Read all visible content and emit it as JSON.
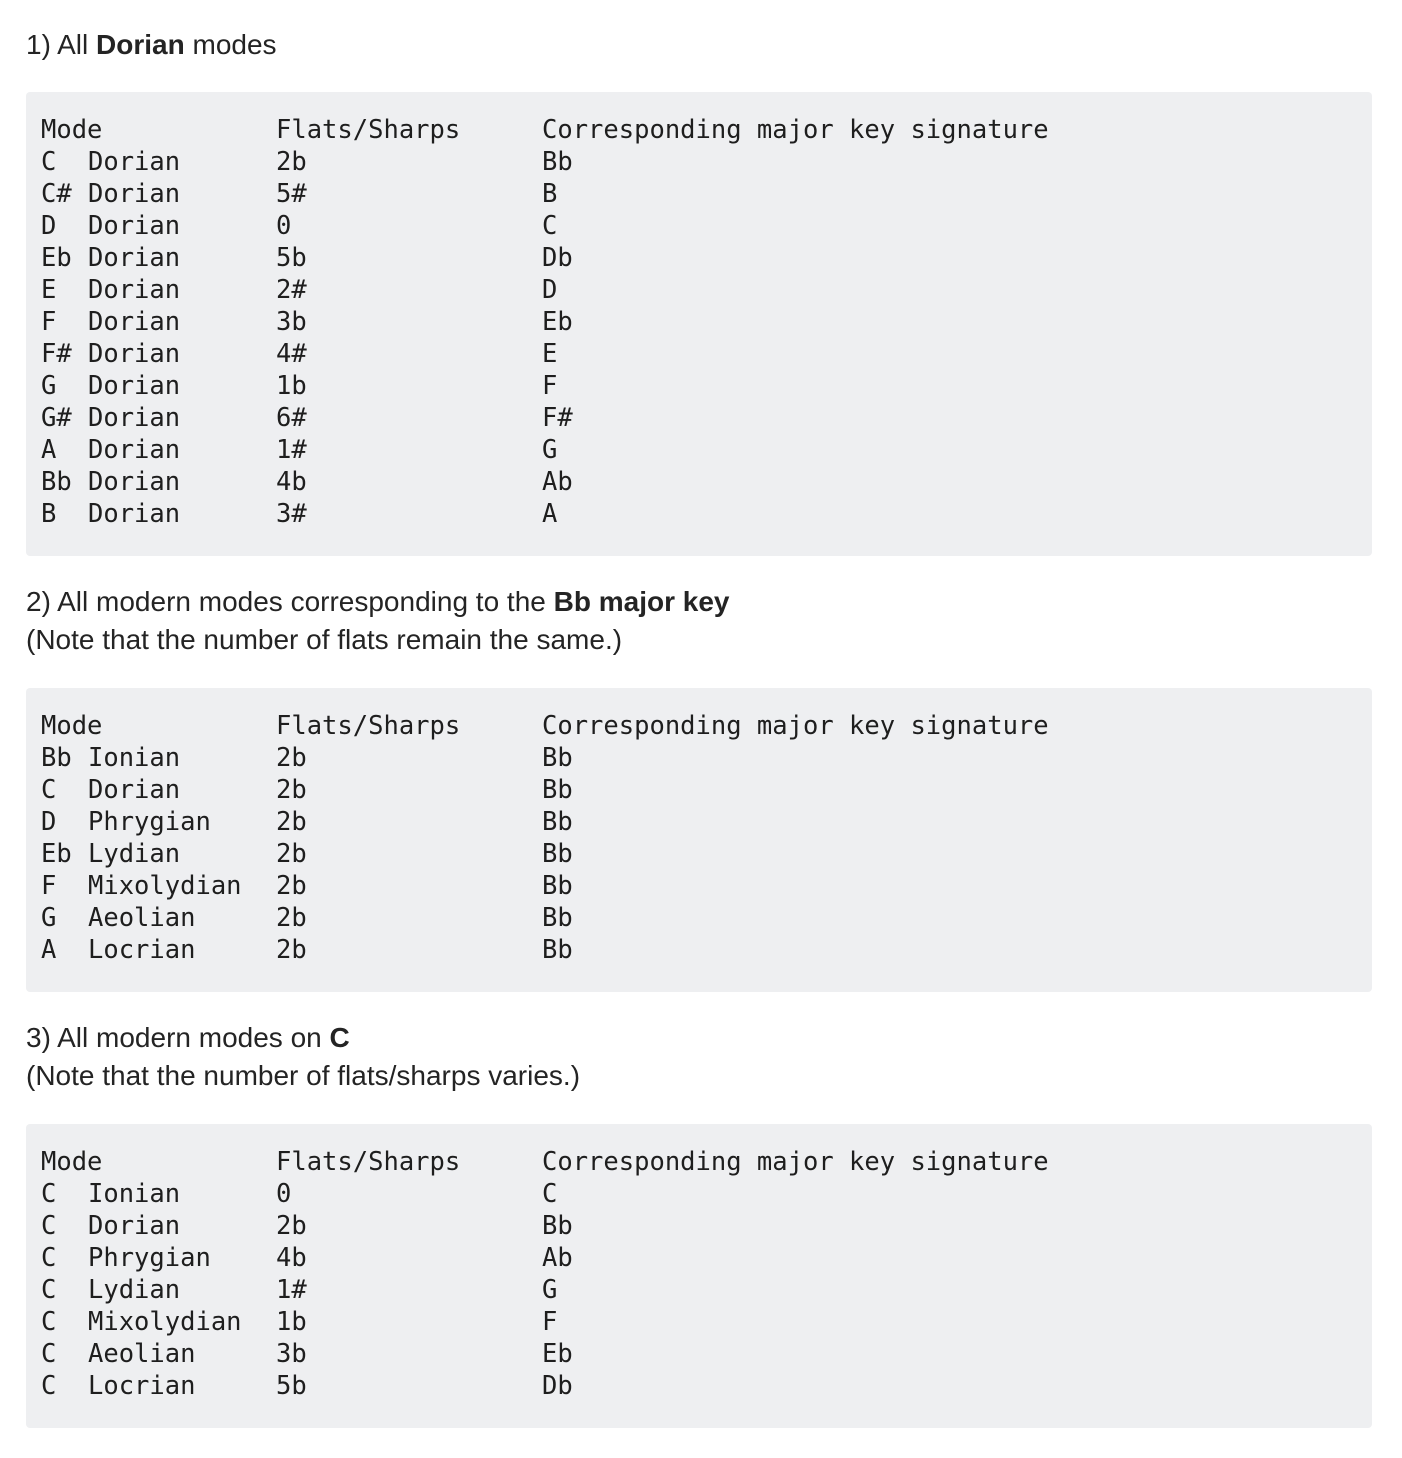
{
  "sections": [
    {
      "heading_prefix": "1) All ",
      "heading_bold": "Dorian",
      "heading_suffix": " modes",
      "note": "",
      "columns": [
        "Mode",
        "Flats/Sharps",
        "Corresponding major key signature"
      ],
      "rows": [
        {
          "note": "C",
          "name": "Dorian",
          "acc": "2b",
          "key": "Bb"
        },
        {
          "note": "C#",
          "name": "Dorian",
          "acc": "5#",
          "key": "B"
        },
        {
          "note": "D",
          "name": "Dorian",
          "acc": "0",
          "key": "C"
        },
        {
          "note": "Eb",
          "name": "Dorian",
          "acc": "5b",
          "key": "Db"
        },
        {
          "note": "E",
          "name": "Dorian",
          "acc": "2#",
          "key": "D"
        },
        {
          "note": "F",
          "name": "Dorian",
          "acc": "3b",
          "key": "Eb"
        },
        {
          "note": "F#",
          "name": "Dorian",
          "acc": "4#",
          "key": "E"
        },
        {
          "note": "G",
          "name": "Dorian",
          "acc": "1b",
          "key": "F"
        },
        {
          "note": "G#",
          "name": "Dorian",
          "acc": "6#",
          "key": "F#"
        },
        {
          "note": "A",
          "name": "Dorian",
          "acc": "1#",
          "key": "G"
        },
        {
          "note": "Bb",
          "name": "Dorian",
          "acc": "4b",
          "key": "Ab"
        },
        {
          "note": "B",
          "name": "Dorian",
          "acc": "3#",
          "key": "A"
        }
      ]
    },
    {
      "heading_prefix": "2) All modern modes corresponding to the ",
      "heading_bold": "Bb major key",
      "heading_suffix": "",
      "note": "(Note that the number of flats remain the same.)",
      "columns": [
        "Mode",
        "Flats/Sharps",
        "Corresponding major key signature"
      ],
      "rows": [
        {
          "note": "Bb",
          "name": "Ionian",
          "acc": "2b",
          "key": "Bb"
        },
        {
          "note": "C",
          "name": "Dorian",
          "acc": "2b",
          "key": "Bb"
        },
        {
          "note": "D",
          "name": "Phrygian",
          "acc": "2b",
          "key": "Bb"
        },
        {
          "note": "Eb",
          "name": "Lydian",
          "acc": "2b",
          "key": "Bb"
        },
        {
          "note": "F",
          "name": "Mixolydian",
          "acc": "2b",
          "key": "Bb"
        },
        {
          "note": "G",
          "name": "Aeolian",
          "acc": "2b",
          "key": "Bb"
        },
        {
          "note": "A",
          "name": "Locrian",
          "acc": "2b",
          "key": "Bb"
        }
      ]
    },
    {
      "heading_prefix": "3) All modern modes on ",
      "heading_bold": "C",
      "heading_suffix": "",
      "note": "(Note that the number of flats/sharps varies.)",
      "columns": [
        "Mode",
        "Flats/Sharps",
        "Corresponding major key signature"
      ],
      "rows": [
        {
          "note": "C",
          "name": "Ionian",
          "acc": "0",
          "key": "C"
        },
        {
          "note": "C",
          "name": "Dorian",
          "acc": "2b",
          "key": "Bb"
        },
        {
          "note": "C",
          "name": "Phrygian",
          "acc": "4b",
          "key": "Ab"
        },
        {
          "note": "C",
          "name": "Lydian",
          "acc": "1#",
          "key": "G"
        },
        {
          "note": "C",
          "name": "Mixolydian",
          "acc": "1b",
          "key": "F"
        },
        {
          "note": "C",
          "name": "Aeolian",
          "acc": "3b",
          "key": "Eb"
        },
        {
          "note": "C",
          "name": "Locrian",
          "acc": "5b",
          "key": "Db"
        }
      ]
    }
  ]
}
